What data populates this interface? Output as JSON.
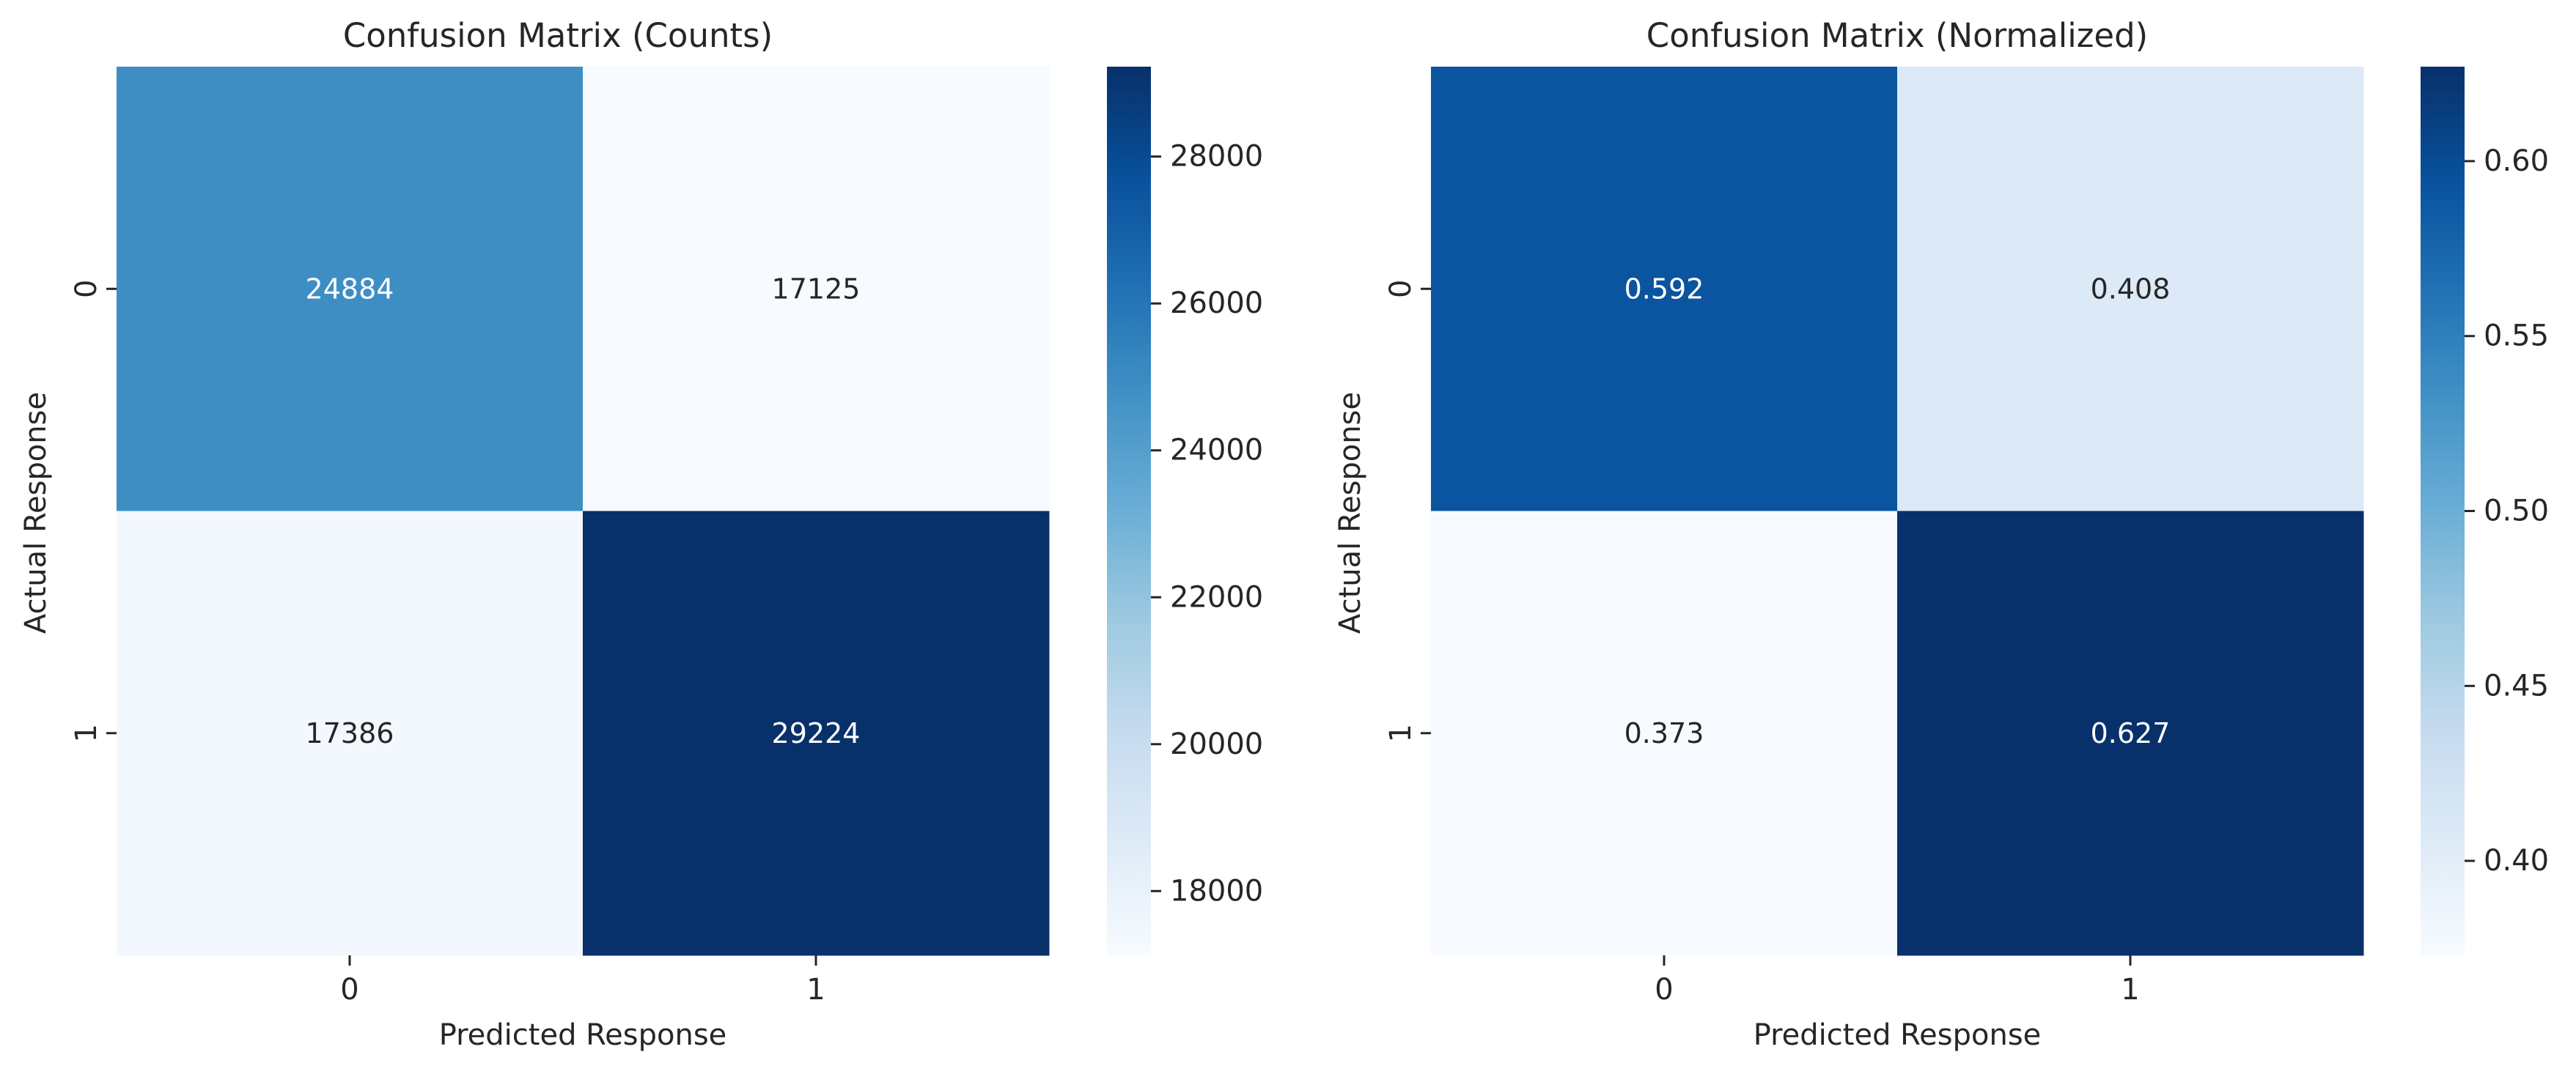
{
  "chart_data": [
    {
      "type": "heatmap",
      "title": "Confusion Matrix (Counts)",
      "xlabel": "Predicted Response",
      "ylabel": "Actual Response",
      "x_categories": [
        "0",
        "1"
      ],
      "y_categories": [
        "0",
        "1"
      ],
      "values": [
        [
          24884,
          17125
        ],
        [
          17386,
          29224
        ]
      ],
      "cell_labels": [
        [
          "24884",
          "17125"
        ],
        [
          "17386",
          "29224"
        ]
      ],
      "colormap": "Blues",
      "colorbar": {
        "vmin": 17125,
        "vmax": 29224,
        "ticks": [
          18000,
          20000,
          22000,
          24000,
          26000,
          28000
        ],
        "tick_labels": [
          "18000",
          "20000",
          "22000",
          "24000",
          "26000",
          "28000"
        ]
      }
    },
    {
      "type": "heatmap",
      "title": "Confusion Matrix (Normalized)",
      "xlabel": "Predicted Response",
      "ylabel": "Actual Response",
      "x_categories": [
        "0",
        "1"
      ],
      "y_categories": [
        "0",
        "1"
      ],
      "values": [
        [
          0.592,
          0.408
        ],
        [
          0.373,
          0.627
        ]
      ],
      "cell_labels": [
        [
          "0.592",
          "0.408"
        ],
        [
          "0.373",
          "0.627"
        ]
      ],
      "colormap": "Blues",
      "colorbar": {
        "vmin": 0.373,
        "vmax": 0.627,
        "ticks": [
          0.4,
          0.45,
          0.5,
          0.55,
          0.6
        ],
        "tick_labels": [
          "0.40",
          "0.45",
          "0.50",
          "0.55",
          "0.60"
        ]
      }
    }
  ],
  "colors": {
    "text_dark": "#262626",
    "text_light": "#ffffff"
  }
}
